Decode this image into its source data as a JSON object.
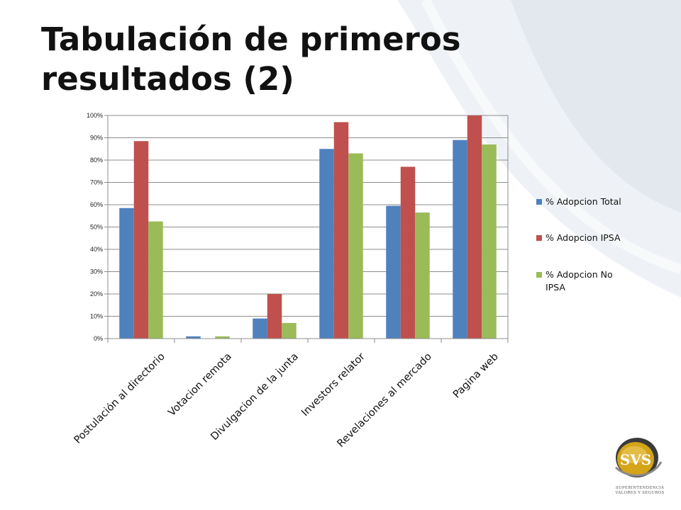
{
  "slide": {
    "title": "Tabulación de primeros resultados (2)"
  },
  "logo": {
    "text": "SVS",
    "caption_line1": "SUPERINTENDENCIA",
    "caption_line2": "VALORES Y SEGUROS",
    "colors": {
      "gold": "#d4a419",
      "dark": "#3a3a3a"
    }
  },
  "chart_data": {
    "type": "bar",
    "categories": [
      "Postulación al directorio",
      "Votacion remota",
      "Divulgacion de la junta",
      "Investors relator",
      "Revelaciones al mercado",
      "Pagina web"
    ],
    "series": [
      {
        "name": "% Adopcion Total",
        "values": [
          58.5,
          1,
          9,
          85,
          59.5,
          89
        ],
        "color": "#4f81bd"
      },
      {
        "name": "% Adopcion IPSA",
        "values": [
          88.5,
          0,
          20,
          97,
          77,
          100
        ],
        "color": "#c0504d"
      },
      {
        "name": "% Adopcion No IPSA",
        "values": [
          52.5,
          1,
          7,
          83,
          56.5,
          87
        ],
        "color": "#9bbb59"
      }
    ],
    "ylim": [
      0,
      100
    ],
    "yticks": [
      "0%",
      "10%",
      "20%",
      "30%",
      "40%",
      "50%",
      "60%",
      "70%",
      "80%",
      "90%",
      "100%"
    ],
    "grid": true,
    "legend_position": "right"
  }
}
